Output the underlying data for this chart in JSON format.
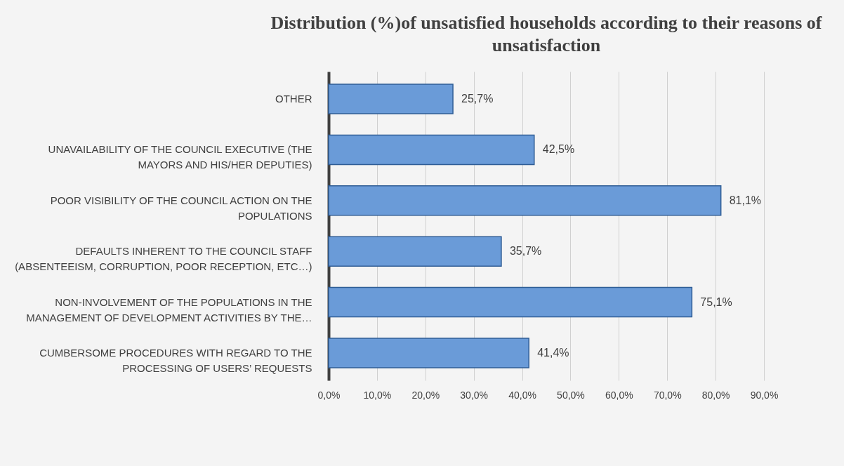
{
  "chart_data": {
    "type": "bar",
    "orientation": "horizontal",
    "title": "Distribution (%)of unsatisfied households according to their reasons of unsatisfaction",
    "categories": [
      "OTHER",
      "UNAVAILABILITY OF THE COUNCIL EXECUTIVE (THE MAYORS AND HIS/HER DEPUTIES)",
      "POOR VISIBILITY OF THE COUNCIL ACTION ON THE POPULATIONS",
      "DEFAULTS INHERENT TO THE COUNCIL STAFF (ABSENTEEISM, CORRUPTION, POOR RECEPTION, ETC…)",
      "NON-INVOLVEMENT OF THE POPULATIONS IN THE MANAGEMENT OF DEVELOPMENT ACTIVITIES BY THE…",
      "CUMBERSOME PROCEDURES WITH REGARD TO THE PROCESSING OF USERS’ REQUESTS"
    ],
    "values": [
      25.7,
      42.5,
      81.1,
      35.7,
      75.1,
      41.4
    ],
    "value_labels": [
      "25,7%",
      "42,5%",
      "81,1%",
      "35,7%",
      "75,1%",
      "41,4%"
    ],
    "color": "#6a9bd8",
    "xlim": [
      0,
      90
    ],
    "xticks": [
      {
        "value": 0,
        "label": "0,0%"
      },
      {
        "value": 10,
        "label": "10,0%"
      },
      {
        "value": 20,
        "label": "20,0%"
      },
      {
        "value": 30,
        "label": "30,0%"
      },
      {
        "value": 40,
        "label": "40,0%"
      },
      {
        "value": 50,
        "label": "50,0%"
      },
      {
        "value": 60,
        "label": "60,0%"
      },
      {
        "value": 70,
        "label": "70,0%"
      },
      {
        "value": 80,
        "label": "80,0%"
      },
      {
        "value": 90,
        "label": "90,0%"
      }
    ],
    "grid": "x"
  }
}
